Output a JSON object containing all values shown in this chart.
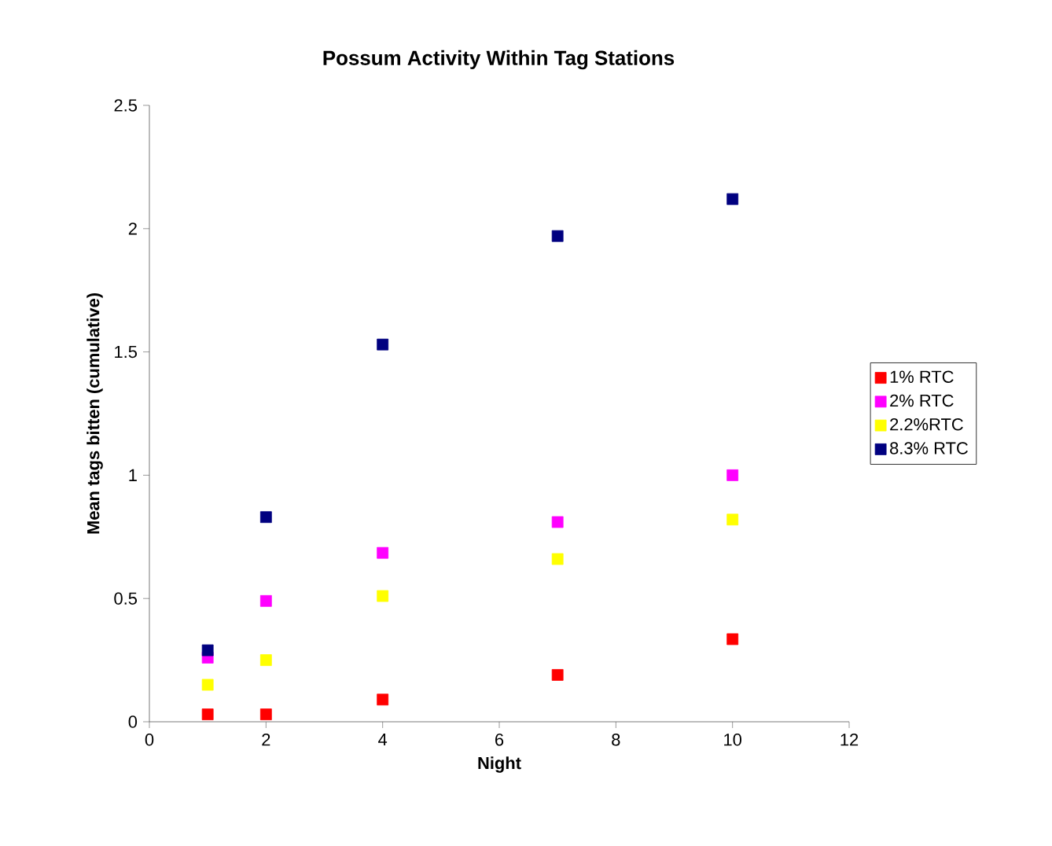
{
  "chart_data": {
    "type": "scatter",
    "title": "Possum Activity Within Tag Stations",
    "xlabel": "Night",
    "ylabel": "Mean tags bitten (cumulative)",
    "x": [
      1,
      2,
      4,
      7,
      10
    ],
    "series": [
      {
        "name": "1% RTC",
        "color": "#ff0000",
        "values": [
          0.03,
          0.03,
          0.09,
          0.19,
          0.335
        ]
      },
      {
        "name": "2% RTC",
        "color": "#ff00ff",
        "values": [
          0.26,
          0.49,
          0.685,
          0.81,
          1.0
        ]
      },
      {
        "name": "2.2%RTC",
        "color": "#ffff00",
        "values": [
          0.15,
          0.25,
          0.51,
          0.66,
          0.82
        ]
      },
      {
        "name": "8.3% RTC",
        "color": "#000080",
        "values": [
          0.29,
          0.83,
          1.53,
          1.97,
          2.12
        ]
      }
    ],
    "xlim": [
      0,
      12
    ],
    "xticks": [
      0,
      2,
      4,
      6,
      8,
      10,
      12
    ],
    "ylim": [
      0,
      2.5
    ],
    "yticks": [
      0,
      0.5,
      1,
      1.5,
      2,
      2.5
    ],
    "marker": "square",
    "legend": "right"
  }
}
